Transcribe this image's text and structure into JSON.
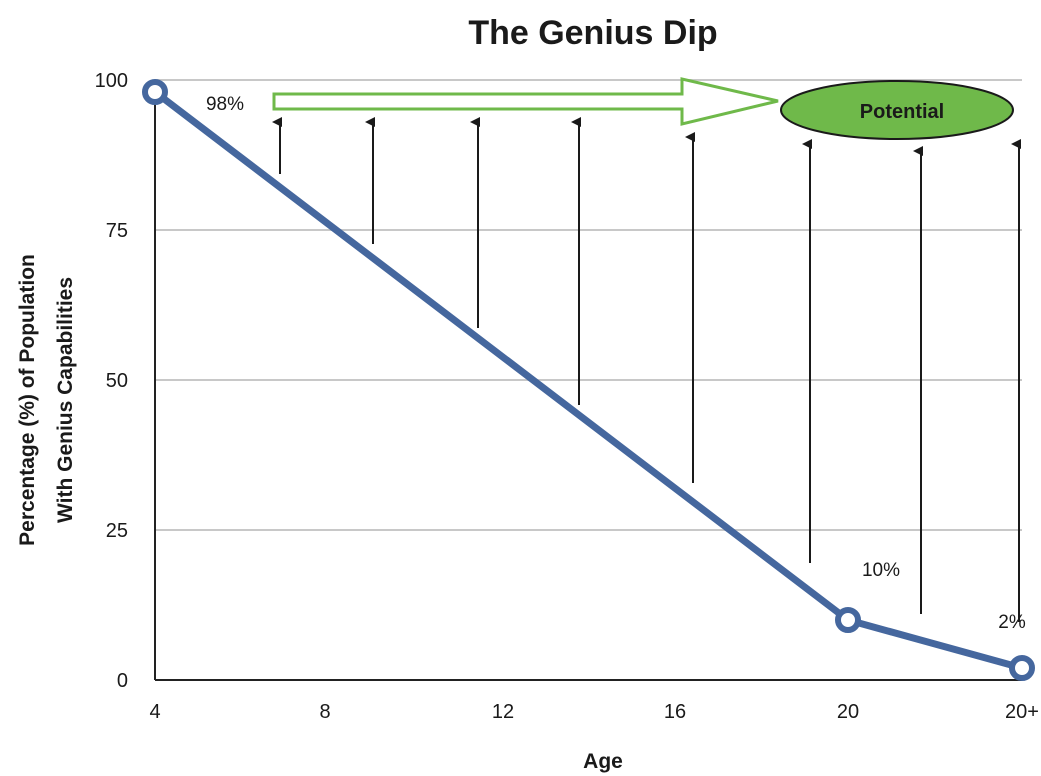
{
  "chart_data": {
    "type": "line",
    "title": "The Genius Dip",
    "xlabel": "Age",
    "ylabel_lines": [
      "Percentage (%) of Population",
      "With Genius Capabilities"
    ],
    "categories": [
      "4",
      "8",
      "12",
      "16",
      "20",
      "20+"
    ],
    "ylim": [
      0,
      100
    ],
    "yticks": [
      0,
      25,
      50,
      75,
      100
    ],
    "grid": true,
    "series": [
      {
        "values": [
          {
            "x": "4",
            "y": 98
          },
          {
            "x": "20",
            "y": 10
          },
          {
            "x": "20+",
            "y": 2
          }
        ],
        "color": "#45679e"
      }
    ],
    "data_labels": [
      {
        "x": "4",
        "y": 98,
        "text": "98%"
      },
      {
        "x": "20",
        "y": 10,
        "text": "10%"
      },
      {
        "x": "20+",
        "y": 2,
        "text": "2%"
      }
    ],
    "annotations": {
      "potential": {
        "text": "Potential",
        "fill": "#6fb94a"
      },
      "arrow_color": "#6fb94a"
    }
  }
}
